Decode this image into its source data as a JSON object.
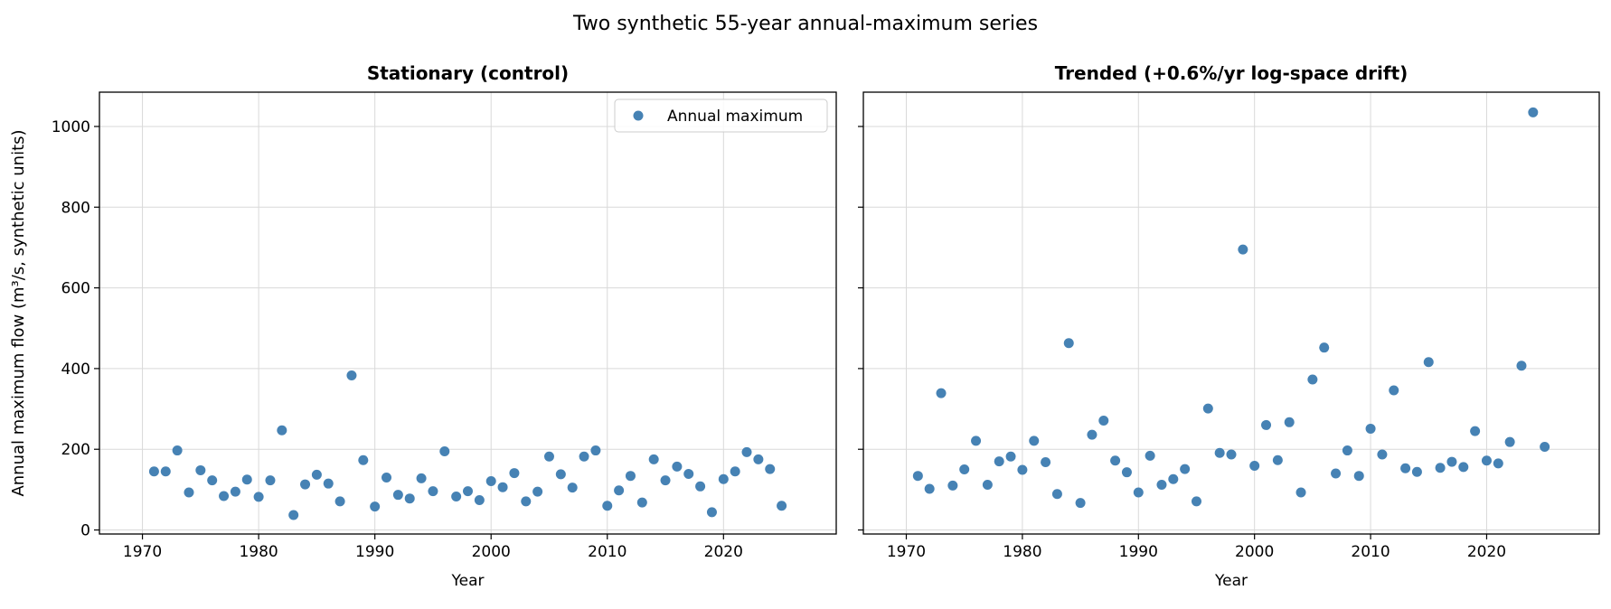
{
  "suptitle": "Two synthetic 55-year annual-maximum series",
  "colors": {
    "marker": "#4682b4",
    "grid": "#d9d9d9",
    "axis": "#000000"
  },
  "chart_data": [
    {
      "type": "scatter",
      "title": "Stationary (control)",
      "xlabel": "Year",
      "ylabel": "Annual maximum flow (m³/s, synthetic units)",
      "xlim": [
        1966.3,
        2029.7
      ],
      "ylim": [
        -10,
        1085
      ],
      "xticks": [
        1970,
        1980,
        1990,
        2000,
        2010,
        2020
      ],
      "yticks": [
        0,
        200,
        400,
        600,
        800,
        1000
      ],
      "grid": true,
      "legend": {
        "placement": "upper right",
        "entries": [
          "Annual maximum"
        ]
      },
      "series": [
        {
          "name": "Annual maximum",
          "x": [
            1971,
            1972,
            1973,
            1974,
            1975,
            1976,
            1977,
            1978,
            1979,
            1980,
            1981,
            1982,
            1983,
            1984,
            1985,
            1986,
            1987,
            1988,
            1989,
            1990,
            1991,
            1992,
            1993,
            1994,
            1995,
            1996,
            1997,
            1998,
            1999,
            2000,
            2001,
            2002,
            2003,
            2004,
            2005,
            2006,
            2007,
            2008,
            2009,
            2010,
            2011,
            2012,
            2013,
            2014,
            2015,
            2016,
            2017,
            2018,
            2019,
            2020,
            2021,
            2022,
            2023,
            2024,
            2025
          ],
          "y": [
            145,
            145,
            197,
            93,
            148,
            123,
            84,
            95,
            125,
            82,
            123,
            247,
            37,
            113,
            137,
            115,
            71,
            383,
            173,
            58,
            130,
            87,
            78,
            128,
            96,
            195,
            83,
            96,
            74,
            121,
            106,
            141,
            71,
            95,
            182,
            138,
            105,
            182,
            197,
            60,
            98,
            134,
            68,
            175,
            123,
            157,
            139,
            108,
            44,
            126,
            145,
            193,
            175,
            151,
            60
          ]
        }
      ]
    },
    {
      "type": "scatter",
      "title": "Trended (+0.6%/yr log-space drift)",
      "xlabel": "Year",
      "ylabel": "",
      "xlim": [
        1966.3,
        2029.7
      ],
      "ylim": [
        -10,
        1085
      ],
      "xticks": [
        1970,
        1980,
        1990,
        2000,
        2010,
        2020
      ],
      "yticks": [
        0,
        200,
        400,
        600,
        800,
        1000
      ],
      "grid": true,
      "series": [
        {
          "name": "Annual maximum",
          "x": [
            1971,
            1972,
            1973,
            1974,
            1975,
            1976,
            1977,
            1978,
            1979,
            1980,
            1981,
            1982,
            1983,
            1984,
            1985,
            1986,
            1987,
            1988,
            1989,
            1990,
            1991,
            1992,
            1993,
            1994,
            1995,
            1996,
            1997,
            1998,
            1999,
            2000,
            2001,
            2002,
            2003,
            2004,
            2005,
            2006,
            2007,
            2008,
            2009,
            2010,
            2011,
            2012,
            2013,
            2014,
            2015,
            2016,
            2017,
            2018,
            2019,
            2020,
            2021,
            2022,
            2023,
            2024,
            2025
          ],
          "y": [
            134,
            102,
            339,
            110,
            150,
            221,
            112,
            170,
            182,
            149,
            221,
            168,
            89,
            463,
            67,
            236,
            271,
            172,
            143,
            93,
            184,
            112,
            126,
            151,
            71,
            301,
            191,
            187,
            695,
            159,
            260,
            173,
            267,
            93,
            373,
            452,
            140,
            197,
            134,
            251,
            187,
            346,
            153,
            144,
            416,
            154,
            169,
            156,
            245,
            172,
            165,
            218,
            407,
            1035,
            206
          ]
        }
      ]
    }
  ]
}
